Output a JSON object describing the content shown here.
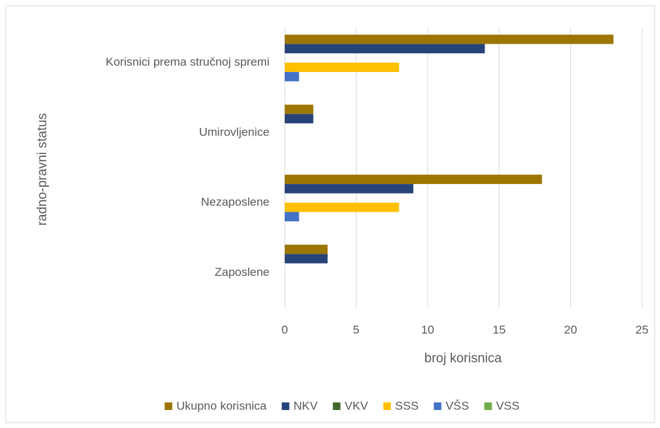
{
  "chart_data": {
    "type": "barh",
    "categories": [
      "Korisnici prema stručnoj spremi",
      "Umirovljenice",
      "Nezaposlene",
      "Zaposlene"
    ],
    "series": [
      {
        "name": "Ukupno korisnica",
        "color": "#9c7600",
        "values": [
          23,
          2,
          18,
          3
        ]
      },
      {
        "name": "NKV",
        "color": "#264478",
        "values": [
          14,
          2,
          9,
          3
        ]
      },
      {
        "name": "VKV",
        "color": "#43682b",
        "values": [
          0,
          0,
          0,
          0
        ]
      },
      {
        "name": "SSS",
        "color": "#ffc000",
        "values": [
          8,
          0,
          8,
          0
        ]
      },
      {
        "name": "VŠS",
        "color": "#4472c4",
        "values": [
          1,
          0,
          1,
          0
        ]
      },
      {
        "name": "VSS",
        "color": "#70ad47",
        "values": [
          0,
          0,
          0,
          0
        ]
      }
    ],
    "x_label": "broj korisnica",
    "y_label": "radno-pravni status",
    "xlim": [
      0,
      25
    ],
    "xticks": [
      0,
      5,
      10,
      15,
      20,
      25
    ],
    "grid": true,
    "legend": "bottom"
  }
}
